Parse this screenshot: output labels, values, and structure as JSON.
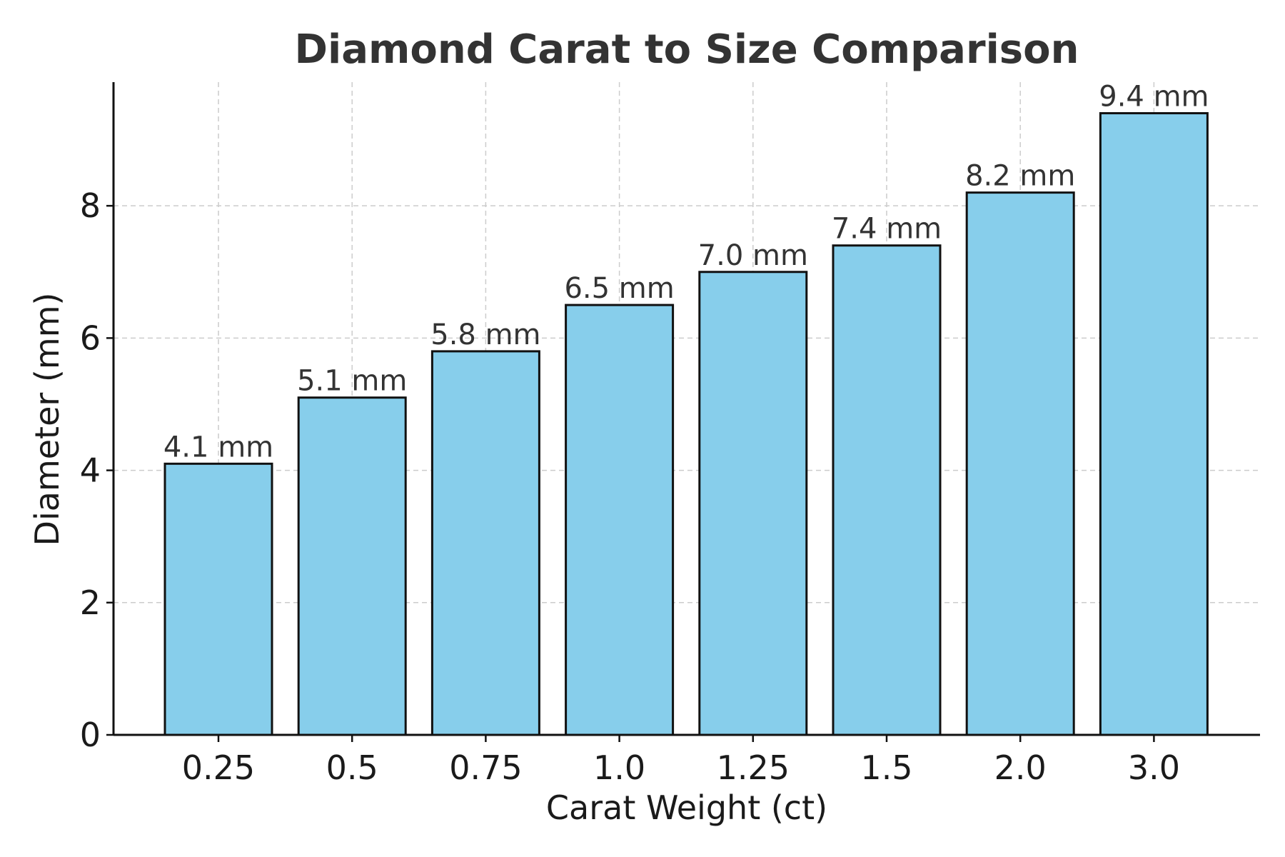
{
  "chart_data": {
    "type": "bar",
    "title": "Diamond Carat to Size Comparison",
    "xlabel": "Carat Weight (ct)",
    "ylabel": "Diameter (mm)",
    "categories": [
      "0.25",
      "0.5",
      "0.75",
      "1.0",
      "1.25",
      "1.5",
      "2.0",
      "3.0"
    ],
    "values": [
      4.1,
      5.1,
      5.8,
      6.5,
      7.0,
      7.4,
      8.2,
      9.4
    ],
    "data_labels": [
      "4.1 mm",
      "5.1 mm",
      "5.8 mm",
      "6.5 mm",
      "7.0 mm",
      "7.4 mm",
      "8.2 mm",
      "9.4 mm"
    ],
    "ylim": [
      0,
      9.87
    ],
    "yticks": [
      0,
      2,
      4,
      6,
      8
    ],
    "ytick_labels": [
      "0",
      "2",
      "4",
      "6",
      "8"
    ],
    "grid": true,
    "bar_color": "#87CEEB",
    "edge_color": "#111111"
  }
}
